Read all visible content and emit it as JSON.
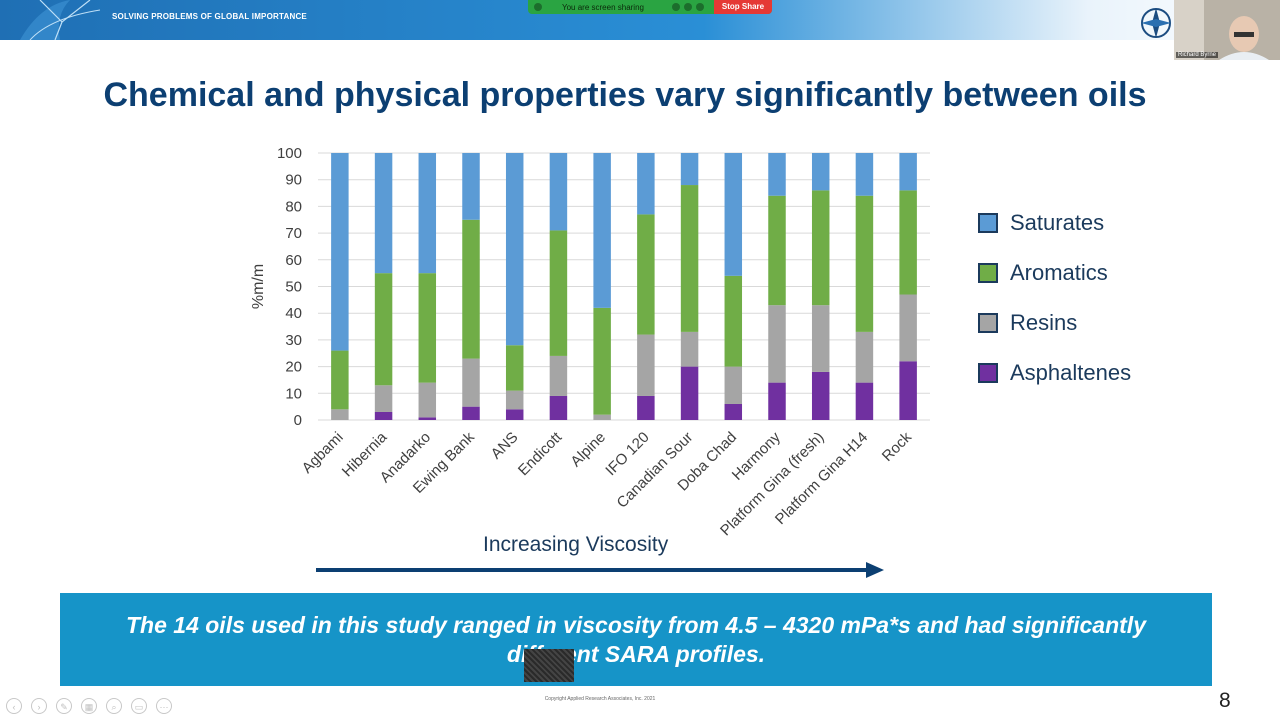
{
  "header": {
    "tagline": "SOLVING PROBLEMS OF GLOBAL IMPORTANCE",
    "sharing_text": "You are screen sharing",
    "stop_share_label": "Stop Share",
    "video_name": "Richard Byrne"
  },
  "slide": {
    "title": "Chemical and physical properties vary significantly between oils",
    "viscosity_label": "Increasing Viscosity",
    "note": "The 14 oils used in this study ranged in viscosity from 4.5 – 4320 mPa*s and had significantly different SARA profiles.",
    "copyright": "Copyright Applied Research Associates, Inc. 2021",
    "page_number": "8"
  },
  "colors": {
    "saturates": "#5b9bd5",
    "aromatics": "#70ad47",
    "resins": "#a5a5a5",
    "asphaltenes": "#7030a0",
    "title": "#0c3f72",
    "note_box": "#1694c8"
  },
  "chart_data": {
    "type": "bar",
    "stacked": true,
    "categories": [
      "Agbami",
      "Hibernia",
      "Anadarko",
      "Ewing Bank",
      "ANS",
      "Endicott",
      "Alpine",
      "IFO 120",
      "Canadian Sour",
      "Doba Chad",
      "Harmony",
      "Platform Gina (fresh)",
      "Platform Gina H14",
      "Rock"
    ],
    "series": [
      {
        "name": "Asphaltenes",
        "values": [
          0,
          3,
          1,
          5,
          4,
          9,
          0,
          9,
          20,
          6,
          14,
          18,
          14,
          22
        ]
      },
      {
        "name": "Resins",
        "values": [
          4,
          10,
          13,
          18,
          7,
          15,
          2,
          23,
          13,
          14,
          29,
          25,
          19,
          25
        ]
      },
      {
        "name": "Aromatics",
        "values": [
          22,
          42,
          41,
          52,
          17,
          47,
          40,
          45,
          55,
          34,
          41,
          43,
          51,
          39
        ]
      },
      {
        "name": "Saturates",
        "values": [
          74,
          45,
          45,
          25,
          72,
          29,
          58,
          23,
          12,
          46,
          16,
          14,
          16,
          14
        ]
      }
    ],
    "ylabel": "%m/m",
    "ylim": [
      0,
      100
    ],
    "yticks": [
      0,
      10,
      20,
      30,
      40,
      50,
      60,
      70,
      80,
      90,
      100
    ],
    "grid": true,
    "legend": [
      "Saturates",
      "Aromatics",
      "Resins",
      "Asphaltenes"
    ],
    "legend_position": "right"
  },
  "toolbar": {
    "icons": [
      "prev-icon",
      "next-icon",
      "pen-icon",
      "slides-icon",
      "zoom-icon",
      "subtitles-icon",
      "more-icon"
    ]
  }
}
